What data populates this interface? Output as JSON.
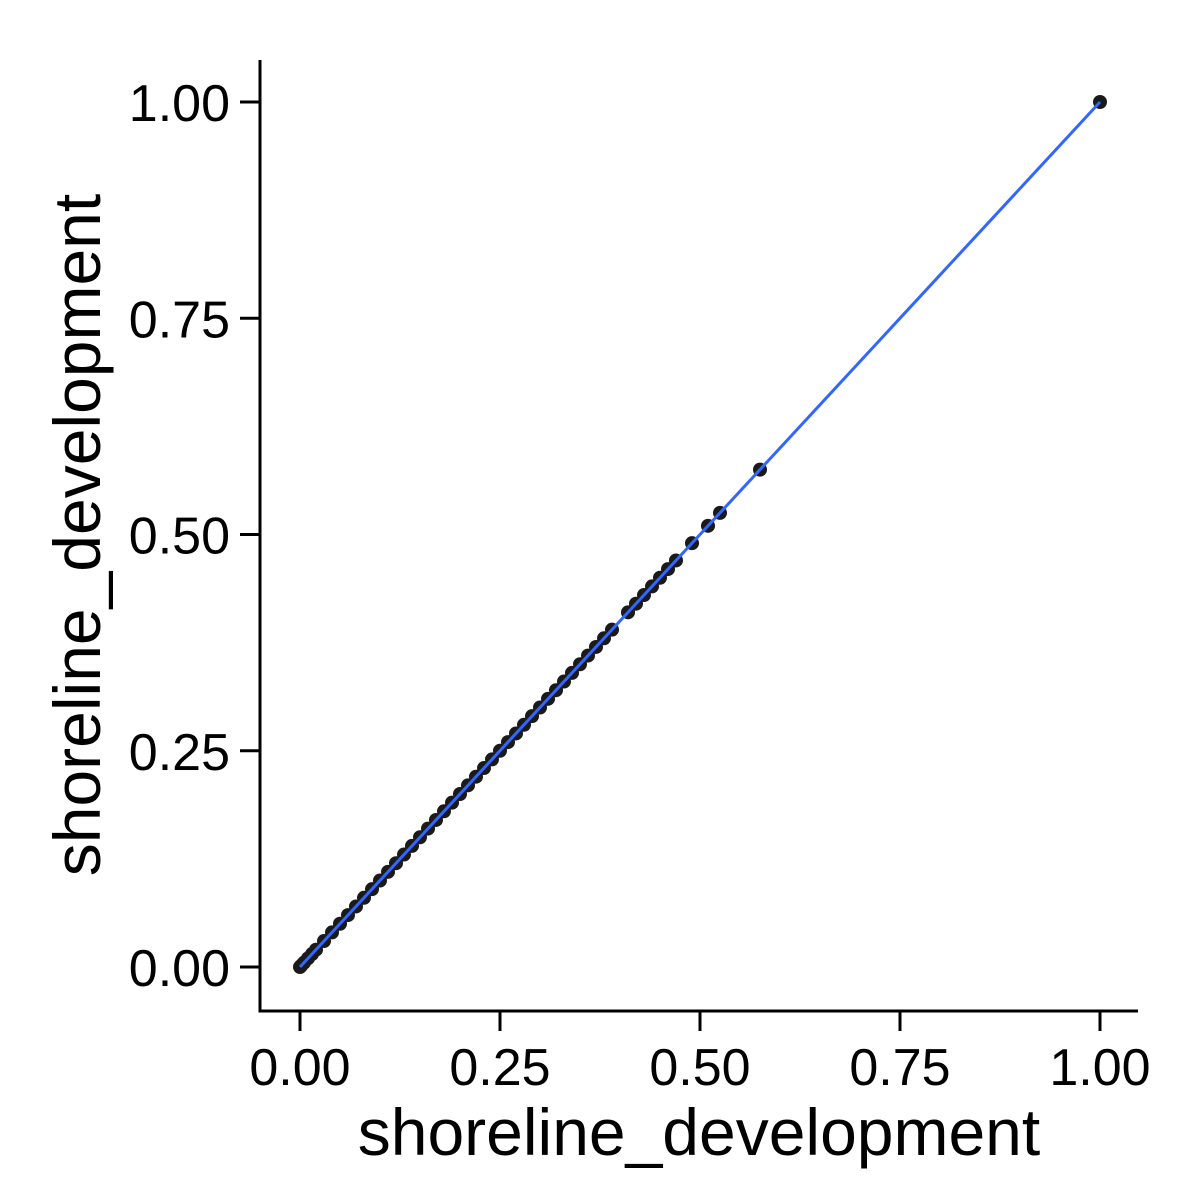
{
  "chart_data": {
    "type": "scatter",
    "title": "",
    "xlabel": "shoreline_development",
    "ylabel": "shoreline_development",
    "xlim": [
      -0.05,
      1.05
    ],
    "ylim": [
      -0.05,
      1.05
    ],
    "x_ticks": [
      "0.00",
      "0.25",
      "0.50",
      "0.75",
      "1.00"
    ],
    "y_ticks": [
      "0.00",
      "0.25",
      "0.50",
      "0.75",
      "1.00"
    ],
    "grid": false,
    "legend": "none",
    "points": {
      "x": [
        0.0,
        0.002,
        0.005,
        0.01,
        0.015,
        0.02,
        0.03,
        0.04,
        0.05,
        0.06,
        0.07,
        0.08,
        0.09,
        0.1,
        0.11,
        0.12,
        0.13,
        0.14,
        0.15,
        0.16,
        0.17,
        0.18,
        0.19,
        0.2,
        0.21,
        0.22,
        0.23,
        0.24,
        0.25,
        0.26,
        0.27,
        0.28,
        0.29,
        0.3,
        0.31,
        0.32,
        0.33,
        0.34,
        0.35,
        0.36,
        0.37,
        0.38,
        0.39,
        0.41,
        0.42,
        0.43,
        0.44,
        0.45,
        0.46,
        0.47,
        0.49,
        0.51,
        0.525,
        0.575,
        1.0
      ],
      "y": [
        0.0,
        0.002,
        0.005,
        0.01,
        0.015,
        0.02,
        0.03,
        0.04,
        0.05,
        0.06,
        0.07,
        0.08,
        0.09,
        0.1,
        0.11,
        0.12,
        0.13,
        0.14,
        0.15,
        0.16,
        0.17,
        0.18,
        0.19,
        0.2,
        0.21,
        0.22,
        0.23,
        0.24,
        0.25,
        0.26,
        0.27,
        0.28,
        0.29,
        0.3,
        0.31,
        0.32,
        0.33,
        0.34,
        0.35,
        0.36,
        0.37,
        0.38,
        0.39,
        0.41,
        0.42,
        0.43,
        0.44,
        0.45,
        0.46,
        0.47,
        0.49,
        0.51,
        0.525,
        0.575,
        1.0
      ]
    },
    "fit_line": {
      "x": [
        0.0,
        1.0
      ],
      "y": [
        0.0,
        1.0
      ]
    },
    "colors": {
      "points": "#1a1a1a",
      "fit_line": "#3366ff",
      "axis": "#000000"
    }
  }
}
